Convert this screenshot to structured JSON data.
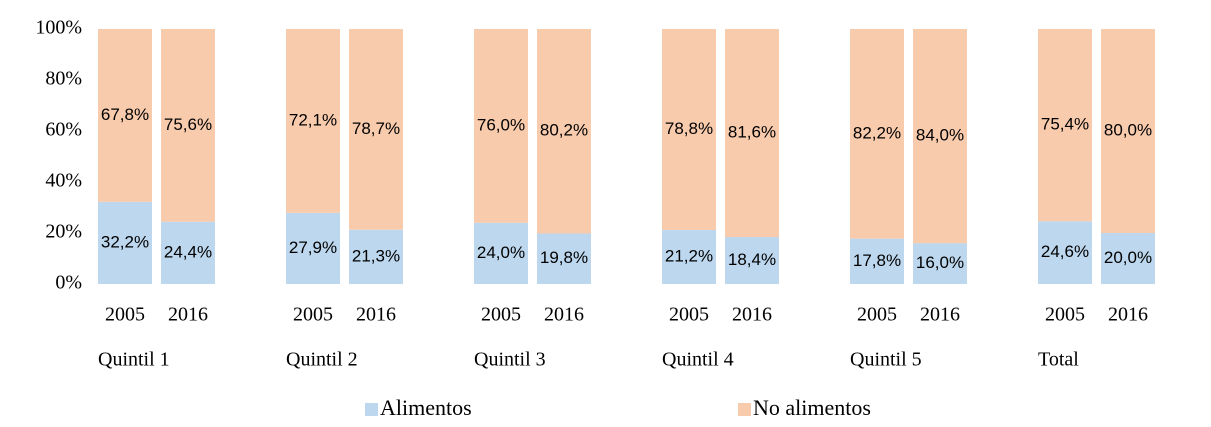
{
  "chart_data": {
    "type": "stacked_bar",
    "categories": [
      "2005",
      "2016",
      "2005",
      "2016",
      "2005",
      "2016",
      "2005",
      "2016",
      "2005",
      "2016",
      "2005",
      "2016"
    ],
    "groups": [
      "Quintil 1",
      "Quintil 2",
      "Quintil 3",
      "Quintil 4",
      "Quintil 5",
      "Total"
    ],
    "series": [
      {
        "name": "Alimentos",
        "color": "#bdd7ee",
        "values": [
          32.2,
          24.4,
          27.9,
          21.3,
          24.0,
          19.8,
          21.2,
          18.4,
          17.8,
          16.0,
          24.6,
          20.0
        ],
        "value_labels": [
          "32,2%",
          "24,4%",
          "27,9%",
          "21,3%",
          "24,0%",
          "19,8%",
          "21,2%",
          "18,4%",
          "17,8%",
          "16,0%",
          "24,6%",
          "20,0%"
        ]
      },
      {
        "name": "No alimentos",
        "color": "#f8cbad",
        "values": [
          67.8,
          75.6,
          72.1,
          78.7,
          76.0,
          80.2,
          78.8,
          81.6,
          82.2,
          84.0,
          75.4,
          80.0
        ],
        "value_labels": [
          "67,8%",
          "75,6%",
          "72,1%",
          "78,7%",
          "76,0%",
          "80,2%",
          "78,8%",
          "81,6%",
          "82,2%",
          "84,0%",
          "75,4%",
          "80,0%"
        ]
      }
    ],
    "ylim": [
      0,
      100
    ],
    "yticks": [
      {
        "value": 0,
        "label": "0%"
      },
      {
        "value": 20,
        "label": "20%"
      },
      {
        "value": 40,
        "label": "40%"
      },
      {
        "value": 60,
        "label": "60%"
      },
      {
        "value": 80,
        "label": "80%"
      },
      {
        "value": 100,
        "label": "100%"
      }
    ],
    "grid": false,
    "legend": "bottom"
  }
}
